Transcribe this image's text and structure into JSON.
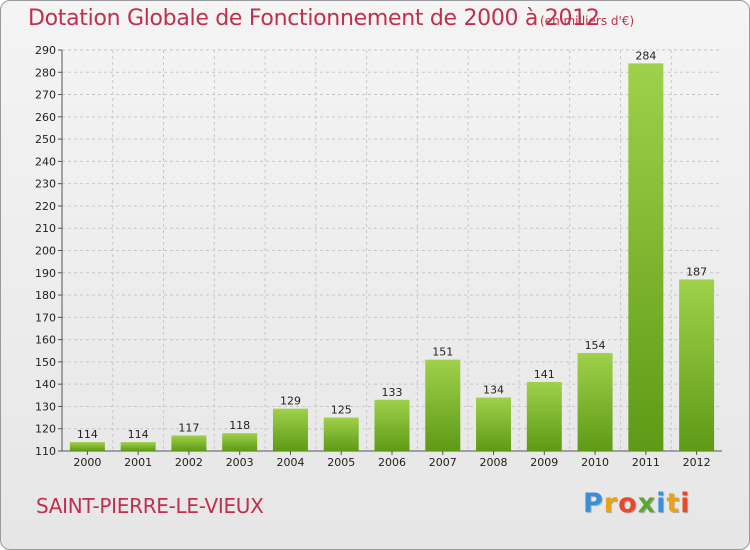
{
  "chart_data": {
    "type": "bar",
    "title": "Dotation Globale de Fonctionnement de 2000 à 2012",
    "unit_note": "(en milliers d'€)",
    "categories": [
      "2000",
      "2001",
      "2002",
      "2003",
      "2004",
      "2005",
      "2006",
      "2007",
      "2008",
      "2009",
      "2010",
      "2011",
      "2012"
    ],
    "values": [
      114,
      114,
      117,
      118,
      129,
      125,
      133,
      151,
      134,
      141,
      154,
      284,
      187
    ],
    "ylim": [
      110,
      290
    ],
    "yticks": [
      110,
      120,
      130,
      140,
      150,
      160,
      170,
      180,
      190,
      200,
      210,
      220,
      230,
      240,
      250,
      260,
      270,
      280,
      290
    ],
    "grid": true,
    "bar_color_light": "#9fd14a",
    "bar_color_dark": "#5e9a16"
  },
  "footer": {
    "commune": "SAINT-PIERRE-LE-VIEUX",
    "logo_text": "Proxiti",
    "logo_colors": [
      "#3a8fd6",
      "#e8a21a",
      "#e34b2c",
      "#5aa832",
      "#3a8fd6",
      "#e8a21a",
      "#e34b2c"
    ]
  }
}
